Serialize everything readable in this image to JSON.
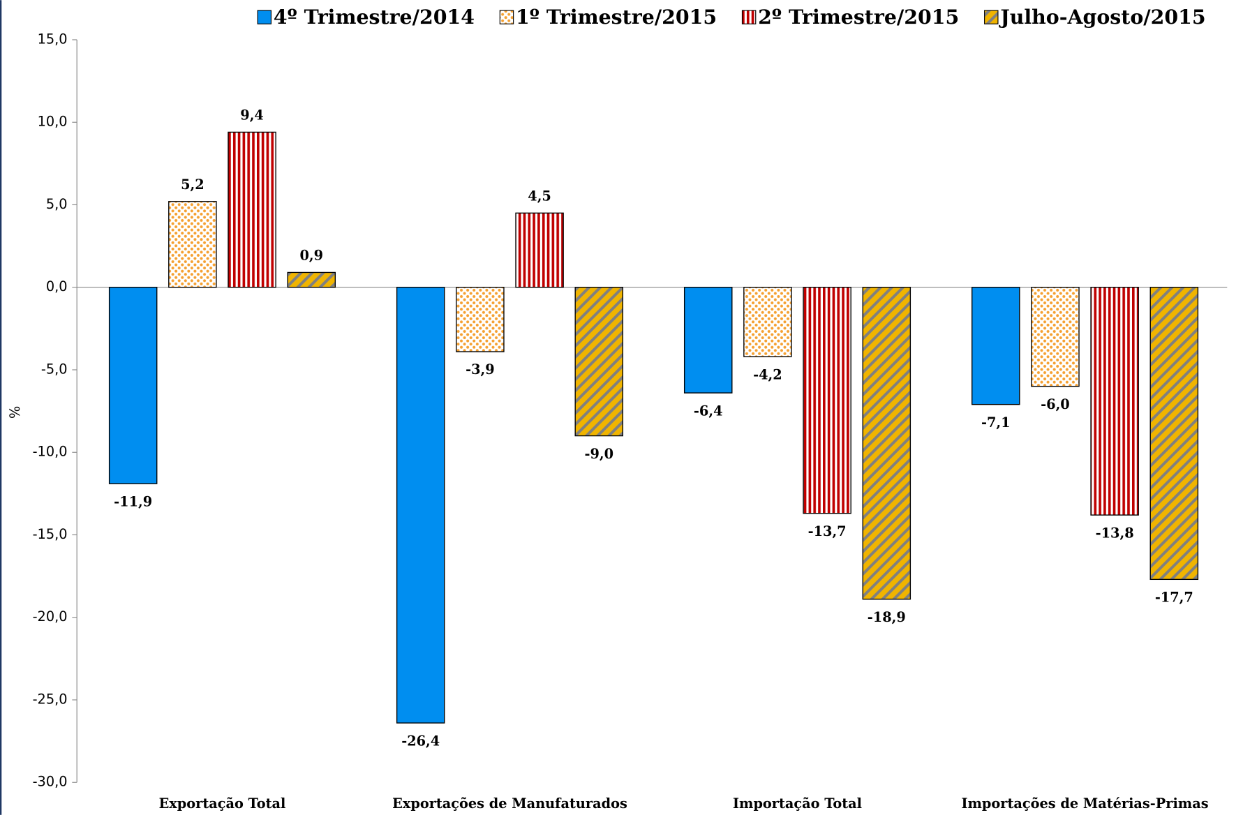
{
  "chart_data": {
    "type": "bar",
    "y_label": "%",
    "categories": [
      "Exportação Total",
      "Exportações de Manufaturados",
      "Importação Total",
      "Importações de Matérias-Primas"
    ],
    "series": [
      {
        "name": "4º Trimestre/2014",
        "color": "#008ef0",
        "pattern": "solid",
        "values": [
          -11.9,
          -26.4,
          -6.4,
          -7.1
        ],
        "value_labels": [
          "-11,9",
          "-26,4",
          "-6,4",
          "-7,1"
        ]
      },
      {
        "name": "1º Trimestre/2015",
        "color": "#f5a030",
        "pattern": "dots",
        "values": [
          5.2,
          -3.9,
          -4.2,
          -6.0
        ],
        "value_labels": [
          "5,2",
          "-3,9",
          "-4,2",
          "-6,0"
        ]
      },
      {
        "name": "2º Trimestre/2015",
        "color": "#c00000",
        "pattern": "vertical-stripes",
        "values": [
          9.4,
          4.5,
          -13.7,
          -13.8
        ],
        "value_labels": [
          "9,4",
          "4,5",
          "-13,7",
          "-13,8"
        ]
      },
      {
        "name": "Julho-Agosto/2015",
        "color": "#f0b400",
        "pattern": "diagonal-stripes",
        "values": [
          0.9,
          -9.0,
          -18.9,
          -17.7
        ],
        "value_labels": [
          "0,9",
          "-9,0",
          "-18,9",
          "-17,7"
        ]
      }
    ],
    "ylim": [
      -30,
      15
    ],
    "yticks": [
      {
        "value": -30,
        "label": "-30,0"
      },
      {
        "value": -25,
        "label": "-25,0"
      },
      {
        "value": -20,
        "label": "-20,0"
      },
      {
        "value": -15,
        "label": "-15,0"
      },
      {
        "value": -10,
        "label": "-10,0"
      },
      {
        "value": -5,
        "label": "-5,0"
      },
      {
        "value": 0,
        "label": "0,0"
      },
      {
        "value": 5,
        "label": "5,0"
      },
      {
        "value": 10,
        "label": "10,0"
      },
      {
        "value": 15,
        "label": "15,0"
      }
    ],
    "legend_position": "top"
  }
}
